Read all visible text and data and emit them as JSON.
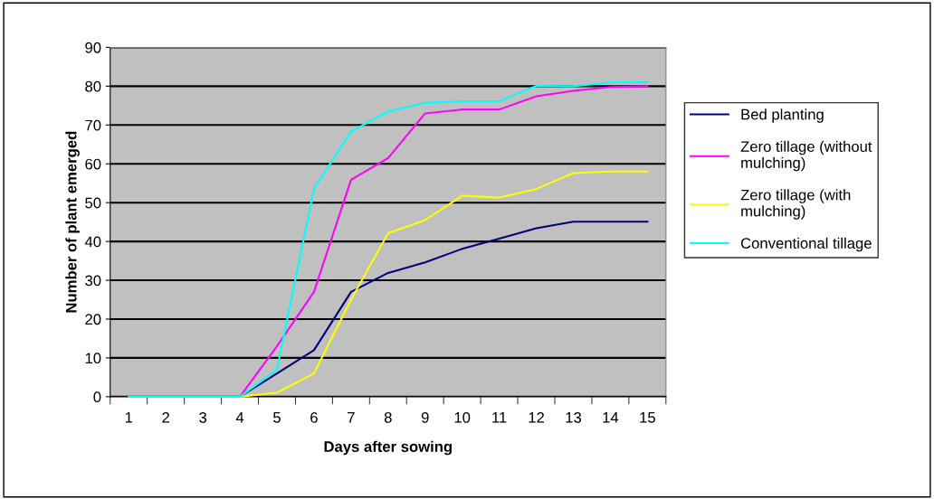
{
  "chart_data": {
    "type": "line",
    "xlabel": "Days after sowing",
    "ylabel": "Number of plant emerged",
    "categories": [
      "1",
      "2",
      "3",
      "4",
      "5",
      "6",
      "7",
      "8",
      "9",
      "10",
      "11",
      "12",
      "13",
      "14",
      "15"
    ],
    "ylim": [
      0,
      90
    ],
    "yticks": [
      0,
      10,
      20,
      30,
      40,
      50,
      60,
      70,
      80,
      90
    ],
    "grid": "y",
    "legend": "right",
    "marker": "none",
    "line_style": "solid",
    "series": [
      {
        "name": "Bed planting",
        "color": "#000080",
        "values": [
          null,
          null,
          null,
          0,
          6,
          12,
          27,
          31.9,
          34.6,
          38.1,
          40.7,
          43.4,
          45.1,
          45.1,
          45.1
        ]
      },
      {
        "name": "Zero tillage (without mulching)",
        "color": "#ff00ff",
        "values": [
          null,
          null,
          null,
          0,
          13,
          27,
          55.9,
          61.5,
          73,
          74,
          74,
          77.4,
          78.8,
          79.8,
          80
        ]
      },
      {
        "name": "Zero tillage (with mulching)",
        "color": "#ffff00",
        "values": [
          null,
          null,
          null,
          0,
          1,
          6,
          25,
          42.1,
          45.5,
          51.8,
          51.3,
          53.5,
          57.6,
          58,
          58
        ]
      },
      {
        "name": "Conventional tillage",
        "color": "#00ffff",
        "values": [
          0,
          0,
          0,
          0,
          7,
          53.6,
          68.3,
          73.5,
          75.7,
          76.1,
          76.1,
          80.1,
          80,
          81,
          81
        ]
      }
    ]
  }
}
